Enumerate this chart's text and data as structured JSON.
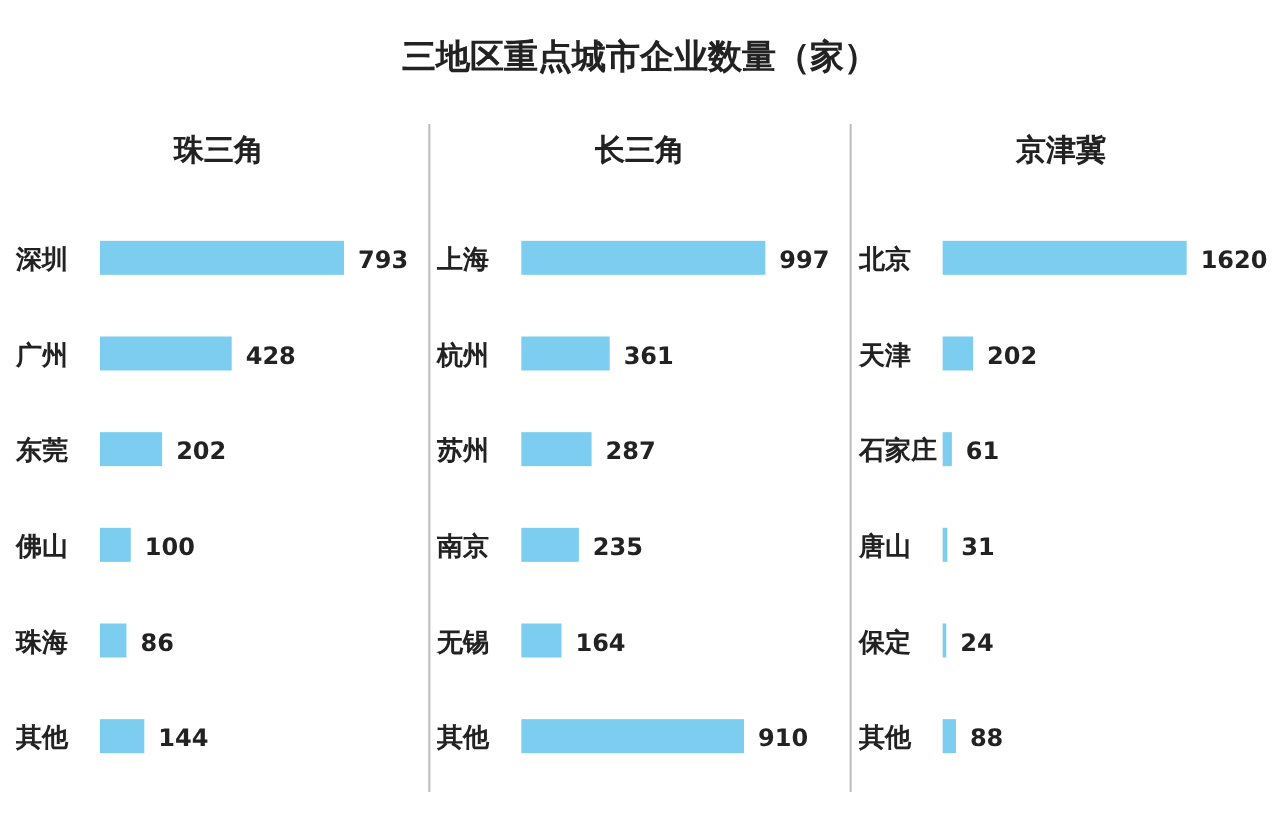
{
  "chart_data": [
    {
      "type": "other",
      "title": "三地区重点城市企业数量（家）"
    },
    {
      "type": "bar",
      "orientation": "horizontal",
      "title": "珠三角",
      "categories": [
        "深圳",
        "广州",
        "东莞",
        "佛山",
        "珠海",
        "其他"
      ],
      "values": [
        793,
        428,
        202,
        100,
        86,
        144
      ],
      "color": "#7ccdef",
      "data_labels": true
    },
    {
      "type": "bar",
      "orientation": "horizontal",
      "title": "长三角",
      "categories": [
        "上海",
        "杭州",
        "苏州",
        "南京",
        "无锡",
        "其他"
      ],
      "values": [
        997,
        361,
        287,
        235,
        164,
        910
      ],
      "color": "#7ccdef",
      "data_labels": true
    },
    {
      "type": "bar",
      "orientation": "horizontal",
      "title": "京津冀",
      "categories": [
        "北京",
        "天津",
        "石家庄",
        "唐山",
        "保定",
        "其他"
      ],
      "values": [
        1620,
        202,
        61,
        31,
        24,
        88
      ],
      "color": "#7ccdef",
      "data_labels": true
    }
  ]
}
